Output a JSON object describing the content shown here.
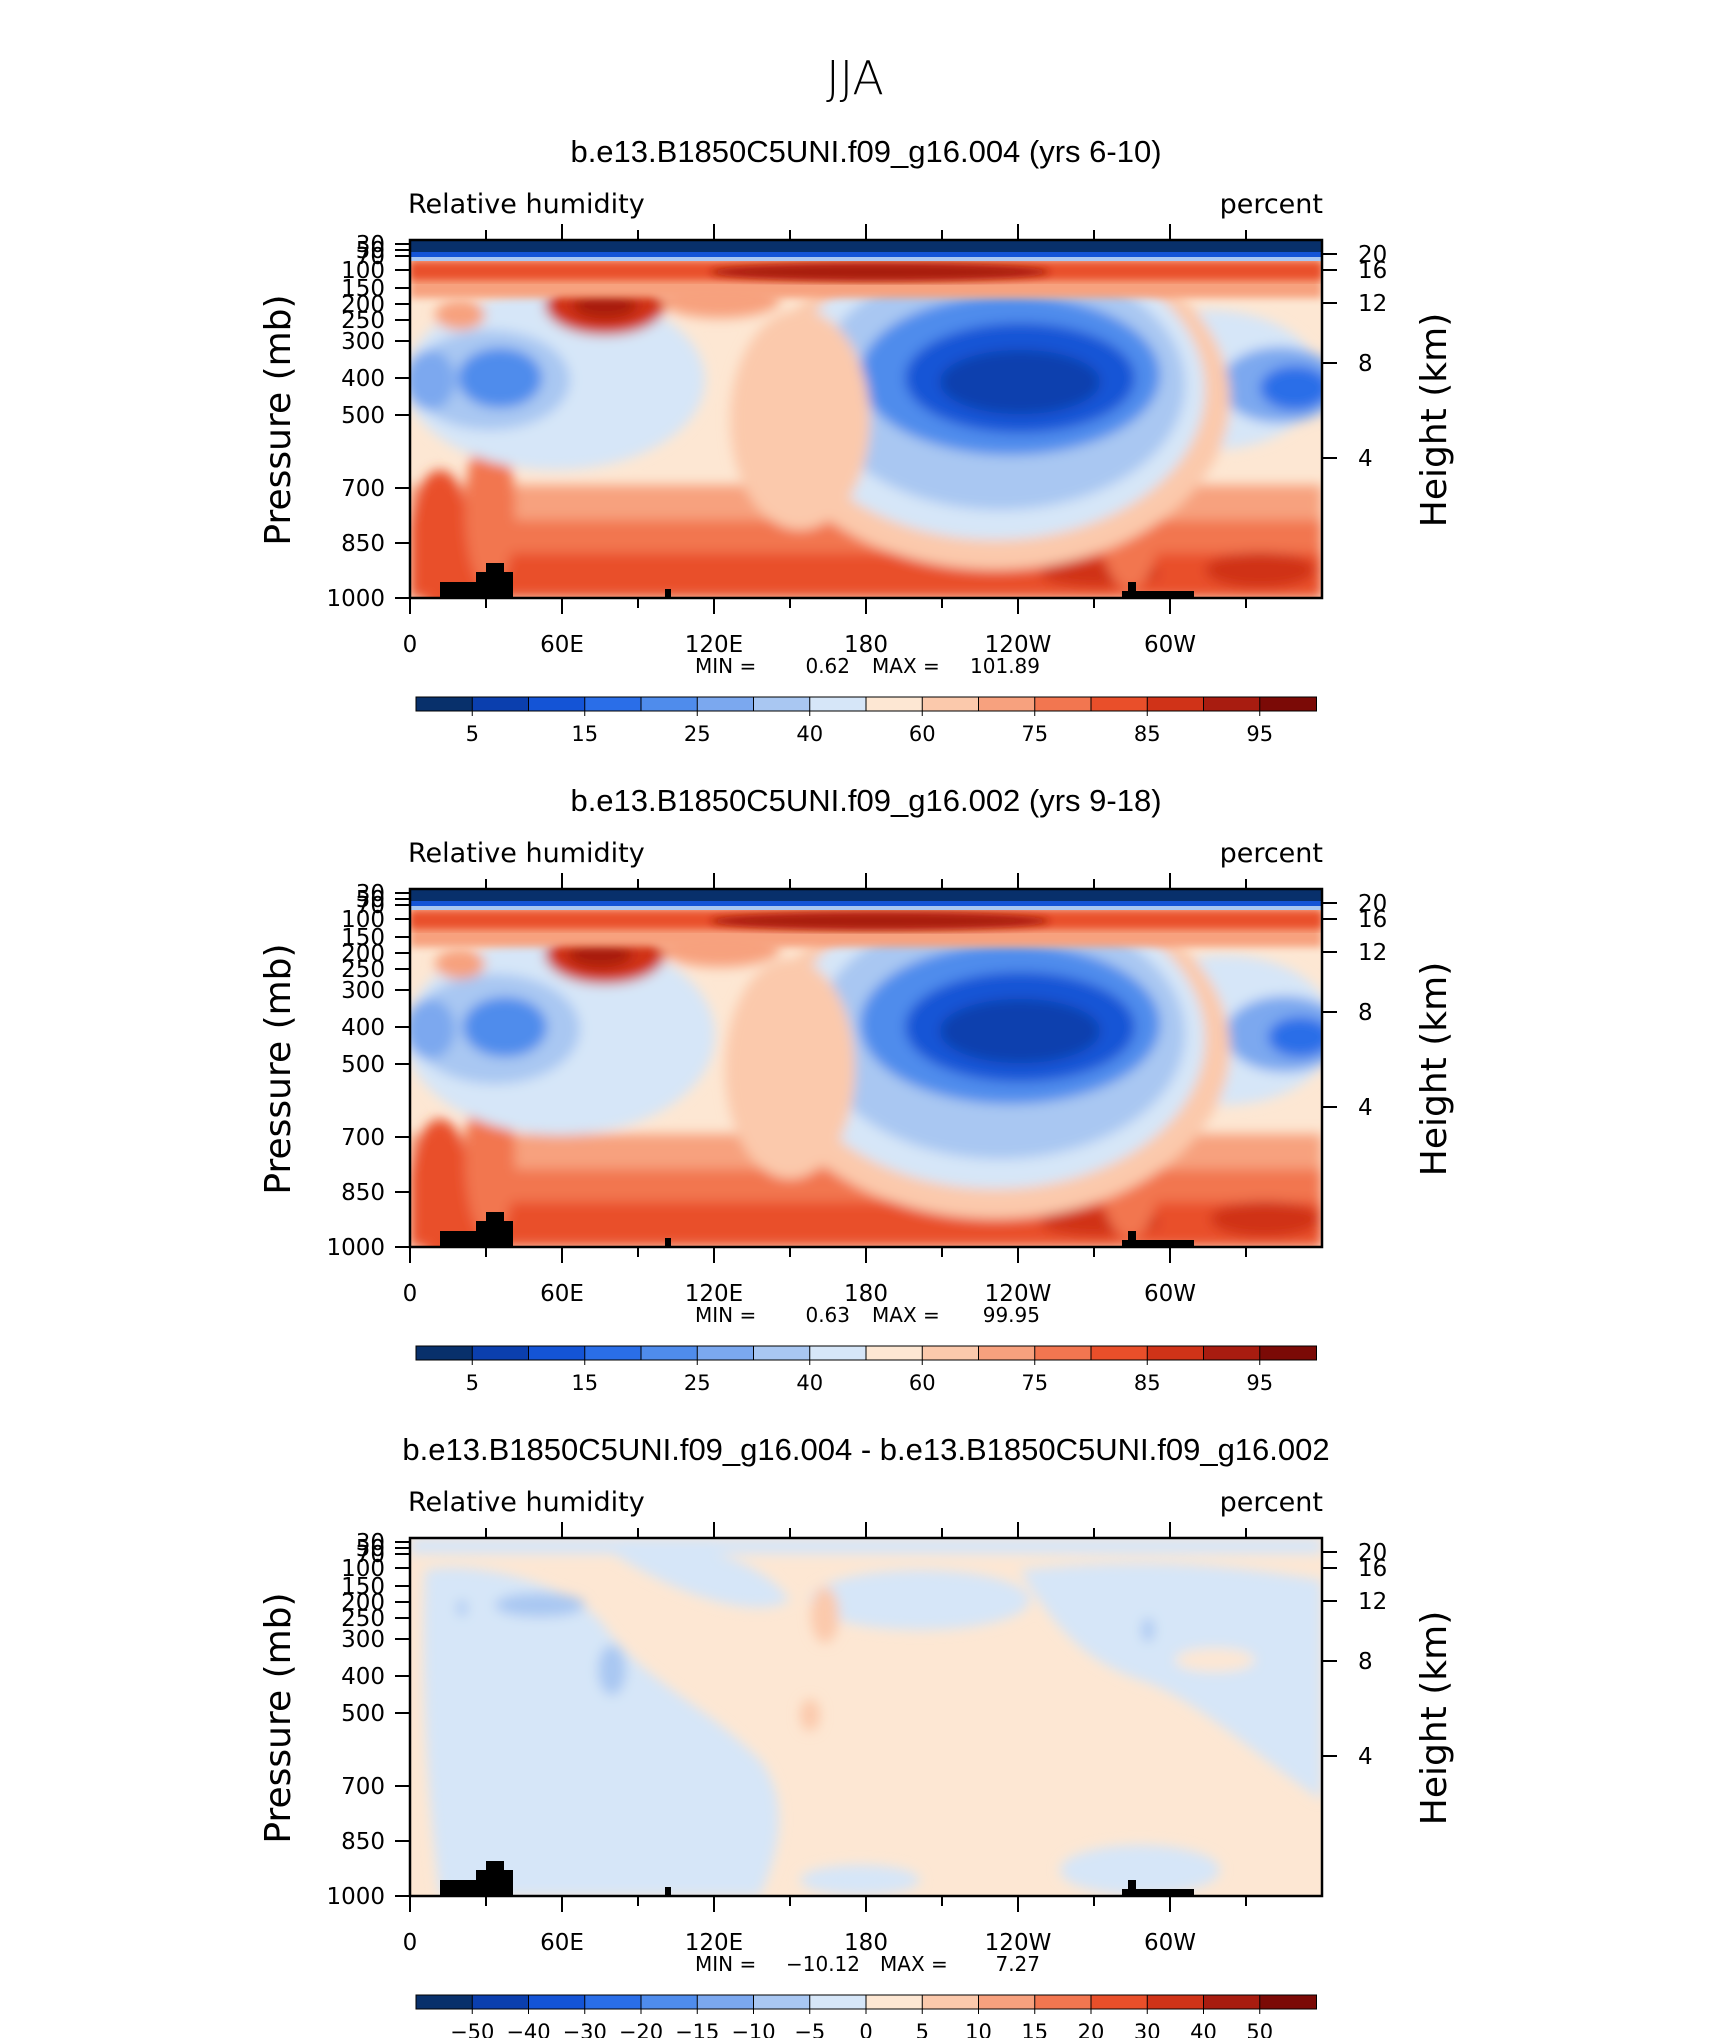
{
  "figure_title": "JJA",
  "chart_data": [
    {
      "type": "heatmap",
      "title": "b.e13.B1850C5UNI.f09_g16.004 (yrs 6-10)",
      "variable_label": "Relative humidity",
      "units_label": "percent",
      "ylabel": "Pressure (mb)",
      "ylabel_right": "Height (km)",
      "yticks": [
        "30",
        "50",
        "70",
        "100",
        "150",
        "200",
        "250",
        "300",
        "400",
        "500",
        "700",
        "850",
        "1000"
      ],
      "yticks_right": [
        "20",
        "16",
        "12",
        "8",
        "4"
      ],
      "xticks": [
        "0",
        "60E",
        "120E",
        "180",
        "120W",
        "60W"
      ],
      "stats": {
        "min_label": "MIN =",
        "min": "0.62",
        "max_label": "MAX =",
        "max": "101.89"
      },
      "colorbar_ticks": [
        "5",
        "15",
        "25",
        "40",
        "60",
        "75",
        "85",
        "95"
      ],
      "colorbar_levels": 16
    },
    {
      "type": "heatmap",
      "title": "b.e13.B1850C5UNI.f09_g16.002 (yrs 9-18)",
      "variable_label": "Relative humidity",
      "units_label": "percent",
      "ylabel": "Pressure (mb)",
      "ylabel_right": "Height (km)",
      "yticks": [
        "30",
        "50",
        "70",
        "100",
        "150",
        "200",
        "250",
        "300",
        "400",
        "500",
        "700",
        "850",
        "1000"
      ],
      "yticks_right": [
        "20",
        "16",
        "12",
        "8",
        "4"
      ],
      "xticks": [
        "0",
        "60E",
        "120E",
        "180",
        "120W",
        "60W"
      ],
      "stats": {
        "min_label": "MIN =",
        "min": "0.63",
        "max_label": "MAX =",
        "max": "99.95"
      },
      "colorbar_ticks": [
        "5",
        "15",
        "25",
        "40",
        "60",
        "75",
        "85",
        "95"
      ],
      "colorbar_levels": 16
    },
    {
      "type": "heatmap",
      "title": "b.e13.B1850C5UNI.f09_g16.004 - b.e13.B1850C5UNI.f09_g16.002",
      "variable_label": "Relative humidity",
      "units_label": "percent",
      "ylabel": "Pressure (mb)",
      "ylabel_right": "Height (km)",
      "yticks": [
        "30",
        "50",
        "70",
        "100",
        "150",
        "200",
        "250",
        "300",
        "400",
        "500",
        "700",
        "850",
        "1000"
      ],
      "yticks_right": [
        "20",
        "16",
        "12",
        "8",
        "4"
      ],
      "xticks": [
        "0",
        "60E",
        "120E",
        "180",
        "120W",
        "60W"
      ],
      "stats": {
        "min_label": "MIN =",
        "min": "−10.12",
        "max_label": "MAX =",
        "max": "7.27"
      },
      "colorbar_ticks": [
        "−50",
        "−40",
        "−30",
        "−20",
        "−15",
        "−10",
        "−5",
        "0",
        "5",
        "10",
        "15",
        "20",
        "30",
        "40",
        "50"
      ],
      "colorbar_levels": 16
    }
  ],
  "palette": [
    "#08306b",
    "#0b3fae",
    "#1454d6",
    "#2a6ee8",
    "#4f8cec",
    "#7ba8ef",
    "#a9c7f2",
    "#d6e6f8",
    "#fde7d3",
    "#fbc9ac",
    "#f7a17e",
    "#f27650",
    "#e94f2a",
    "#d03318",
    "#a81c10",
    "#7b0a06"
  ]
}
